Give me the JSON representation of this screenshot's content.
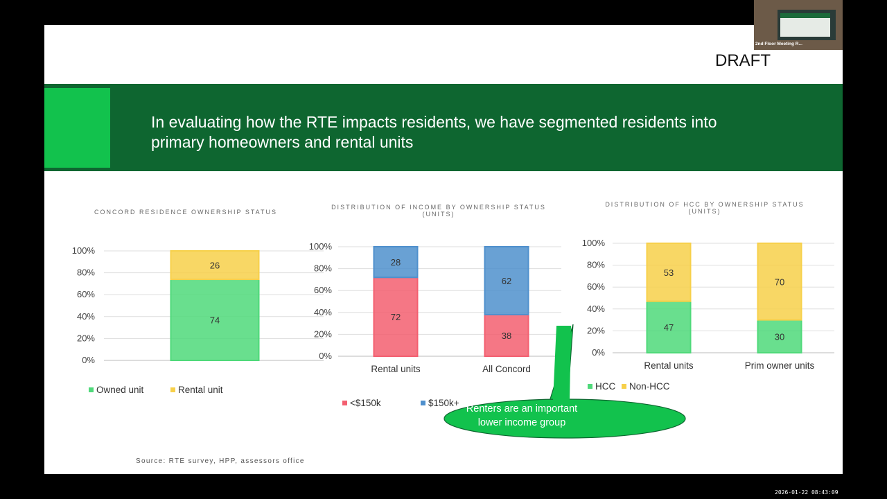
{
  "slide": {
    "draft_label": "DRAFT",
    "title_line1": "In evaluating how the RTE impacts residents, we have segmented residents into",
    "title_line2": "primary homeowners and rental units",
    "source": "Source: RTE survey, HPP, assessors office",
    "callout_line1": "Renters are an important",
    "callout_line2": "lower income group"
  },
  "meeting": {
    "room_label": "2nd Floor Meeting R...",
    "timestamp": "2026-01-22 08:43:09"
  },
  "colors": {
    "banner": "#0e6630",
    "accent": "#12c24d",
    "green": "#4fd97a",
    "yellow": "#f7d04a",
    "red": "#f35f70",
    "blue": "#4f90cd"
  },
  "chart_data": [
    {
      "type": "bar",
      "stacked": true,
      "title": "CONCORD RESIDENCE OWNERSHIP STATUS",
      "categories": [
        ""
      ],
      "yticks": [
        "0%",
        "20%",
        "40%",
        "60%",
        "80%",
        "100%"
      ],
      "ylim": [
        0,
        100
      ],
      "series": [
        {
          "name": "Owned unit",
          "color": "#4fd97a",
          "values": [
            74
          ]
        },
        {
          "name": "Rental unit",
          "color": "#f7d04a",
          "values": [
            26
          ]
        }
      ],
      "legend": "bottom",
      "grid": true
    },
    {
      "type": "bar",
      "stacked": true,
      "title": "DISTRIBUTION OF INCOME BY OWNERSHIP STATUS",
      "title_line2": "(UNITS)",
      "categories": [
        "Rental units",
        "All Concord"
      ],
      "yticks": [
        "0%",
        "20%",
        "40%",
        "60%",
        "80%",
        "100%"
      ],
      "ylim": [
        0,
        100
      ],
      "series": [
        {
          "name": "<$150k",
          "color": "#f35f70",
          "values": [
            72,
            38
          ]
        },
        {
          "name": "$150k+",
          "color": "#4f90cd",
          "values": [
            28,
            62
          ]
        }
      ],
      "legend": "bottom",
      "grid": true
    },
    {
      "type": "bar",
      "stacked": true,
      "title": "DISTRIBUTION OF HCC BY OWNERSHIP STATUS",
      "title_line2": "(UNITS)",
      "categories": [
        "Rental units",
        "Prim owner units"
      ],
      "yticks": [
        "0%",
        "20%",
        "40%",
        "60%",
        "80%",
        "100%"
      ],
      "ylim": [
        0,
        100
      ],
      "series": [
        {
          "name": "HCC",
          "color": "#4fd97a",
          "values": [
            47,
            30
          ]
        },
        {
          "name": "Non-HCC",
          "color": "#f7d04a",
          "values": [
            53,
            70
          ]
        }
      ],
      "legend": "bottom",
      "grid": true
    }
  ]
}
